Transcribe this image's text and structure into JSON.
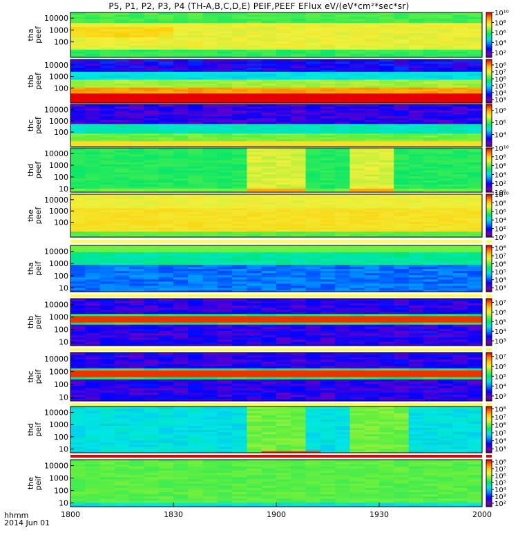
{
  "title": "P5, P1, P2, P3, P4 (TH-A,B,C,D,E) PEIF,PEEF EFlux eV/(eV*cm²*sec*sr)",
  "footer": {
    "hhmm": "hhmm",
    "date": "2014 Jun 01"
  },
  "chart_data": {
    "type": "heatmap",
    "x_tick_labels": [
      "1800",
      "1830",
      "1900",
      "1930",
      "2000"
    ],
    "x_tick_values_min": [
      0,
      30,
      60,
      90,
      120
    ],
    "x_range_min": [
      0,
      120
    ],
    "x_unit": "minutes after 1800 UT (hhmm)",
    "panels": [
      {
        "ylabel": [
          "tha",
          "peef"
        ],
        "yticks": [
          "10000",
          "1000",
          "100"
        ],
        "ytick_vals": [
          10000,
          1000,
          100
        ],
        "ylim": [
          5,
          30000
        ],
        "cbar_labels": [
          "10¹⁰",
          "10⁸",
          "10⁶",
          "10⁴",
          "10²"
        ],
        "cbar_exps": [
          10,
          8,
          6,
          4,
          2
        ],
        "cbar_range": [
          1,
          10
        ],
        "profile": "tha_peef"
      },
      {
        "ylabel": [
          "thb",
          "peef"
        ],
        "yticks": [
          "10000",
          "1000",
          "100"
        ],
        "ytick_vals": [
          10000,
          1000,
          100
        ],
        "ylim": [
          5,
          30000
        ],
        "cbar_labels": [
          "10⁸",
          "10⁷",
          "10⁶",
          "10⁵",
          "10⁴",
          "10³"
        ],
        "cbar_exps": [
          8,
          7,
          6,
          5,
          4,
          3
        ],
        "cbar_range": [
          2.5,
          8.8
        ],
        "profile": "thb_peef"
      },
      {
        "ylabel": [
          "thc",
          "peef"
        ],
        "yticks": [
          "10000",
          "1000",
          "100"
        ],
        "ytick_vals": [
          10000,
          1000,
          100
        ],
        "ylim": [
          5,
          30000
        ],
        "cbar_labels": [
          "10⁸",
          "10⁶",
          "10⁴"
        ],
        "cbar_exps": [
          8,
          6,
          4
        ],
        "cbar_range": [
          2,
          9
        ],
        "profile": "thc_peef"
      },
      {
        "ylabel": [
          "thd",
          "peef"
        ],
        "yticks": [
          "10000",
          "1000",
          "100",
          "10"
        ],
        "ytick_vals": [
          10000,
          1000,
          100,
          10
        ],
        "ylim": [
          5,
          30000
        ],
        "cbar_labels": [
          "10¹⁰",
          "10⁸",
          "10⁶",
          "10⁴",
          "10²",
          "10⁰"
        ],
        "cbar_exps": [
          10,
          8,
          6,
          4,
          2,
          0
        ],
        "cbar_range": [
          0,
          10
        ],
        "profile": "thd_peef"
      },
      {
        "ylabel": [
          "the",
          "peef"
        ],
        "yticks": [
          "10000",
          "1000",
          "100"
        ],
        "ytick_vals": [
          10000,
          1000,
          100
        ],
        "ylim": [
          5,
          30000
        ],
        "cbar_labels": [
          "10¹⁰",
          "10⁸",
          "10⁶",
          "10⁴",
          "10²",
          "10⁰"
        ],
        "cbar_exps": [
          10,
          8,
          6,
          4,
          2,
          0
        ],
        "cbar_range": [
          0,
          10
        ],
        "profile": "the_peef"
      },
      {
        "ylabel": [
          "tha",
          "peif"
        ],
        "yticks": [
          "10000",
          "1000",
          "100",
          "10"
        ],
        "ytick_vals": [
          10000,
          1000,
          100,
          10
        ],
        "ylim": [
          5,
          30000
        ],
        "cbar_labels": [
          "10⁸",
          "10⁷",
          "10⁶",
          "10⁵",
          "10⁴",
          "10³"
        ],
        "cbar_exps": [
          8,
          7,
          6,
          5,
          4,
          3
        ],
        "cbar_range": [
          2.5,
          8.3
        ],
        "profile": "tha_peif"
      },
      {
        "ylabel": [
          "thb",
          "peif"
        ],
        "yticks": [
          "10000",
          "1000",
          "100",
          "10"
        ],
        "ytick_vals": [
          10000,
          1000,
          100,
          10
        ],
        "ylim": [
          5,
          30000
        ],
        "cbar_labels": [
          "10⁷",
          "10⁶",
          "10⁵",
          "10⁴",
          "10³"
        ],
        "cbar_exps": [
          7,
          6,
          5,
          4,
          3
        ],
        "cbar_range": [
          2.5,
          7.4
        ],
        "profile": "thb_peif"
      },
      {
        "ylabel": [
          "thc",
          "peif"
        ],
        "yticks": [
          "10000",
          "1000",
          "100",
          "10"
        ],
        "ytick_vals": [
          10000,
          1000,
          100,
          10
        ],
        "ylim": [
          5,
          30000
        ],
        "cbar_labels": [
          "10⁷",
          "10⁶",
          "10⁵",
          "10⁴",
          "10³"
        ],
        "cbar_exps": [
          7,
          6,
          5,
          4,
          3
        ],
        "cbar_range": [
          2.5,
          7.4
        ],
        "profile": "thc_peif"
      },
      {
        "ylabel": [
          "thd",
          "peif"
        ],
        "yticks": [
          "10000",
          "1000",
          "100",
          "10"
        ],
        "ytick_vals": [
          10000,
          1000,
          100,
          10
        ],
        "ylim": [
          5,
          30000
        ],
        "cbar_labels": [
          "10⁸",
          "10⁷",
          "10⁶",
          "10⁵",
          "10⁴",
          "10³"
        ],
        "cbar_exps": [
          8,
          7,
          6,
          5,
          4,
          3
        ],
        "cbar_range": [
          2.5,
          8.3
        ],
        "profile": "thd_peif"
      },
      {
        "ylabel": [
          "the",
          "peif"
        ],
        "yticks": [
          "10000",
          "1000",
          "100",
          "10"
        ],
        "ytick_vals": [
          10000,
          1000,
          100,
          10
        ],
        "ylim": [
          5,
          30000
        ],
        "cbar_labels": [
          "10⁸",
          "10⁷",
          "10⁶",
          "10⁵",
          "10⁴",
          "10³",
          "10²"
        ],
        "cbar_exps": [
          8,
          7,
          6,
          5,
          4,
          3,
          2
        ],
        "cbar_range": [
          1.5,
          8.3
        ],
        "profile": "the_peif"
      }
    ]
  }
}
